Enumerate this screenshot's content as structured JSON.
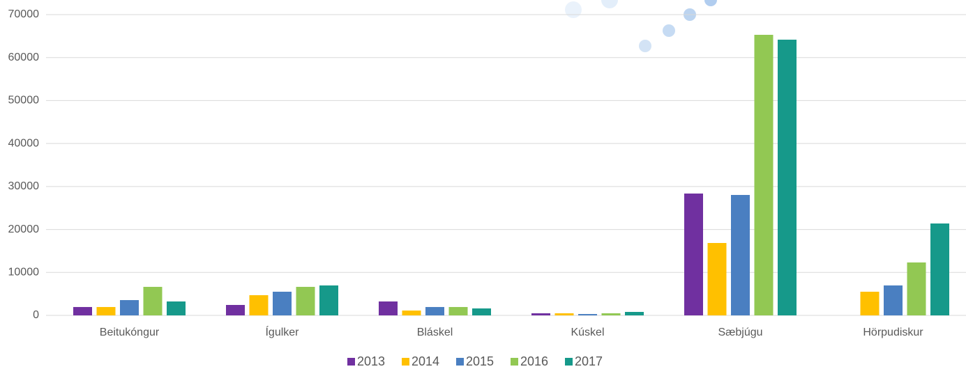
{
  "chart_data": {
    "type": "bar",
    "categories": [
      "Beitukóngur",
      "Ígulker",
      "Bláskel",
      "Kúskel",
      "Sæbjúgu",
      "Hörpudiskur"
    ],
    "series": [
      {
        "name": "2013",
        "color": "#7030a0",
        "values": [
          1950,
          2430,
          3240,
          490,
          28360,
          null
        ]
      },
      {
        "name": "2014",
        "color": "#ffc000",
        "values": [
          1950,
          4700,
          1130,
          490,
          16850,
          5510
        ]
      },
      {
        "name": "2015",
        "color": "#4a7fc1",
        "values": [
          3560,
          5510,
          1950,
          320,
          28030,
          6970
        ]
      },
      {
        "name": "2016",
        "color": "#92c853",
        "values": [
          6640,
          6640,
          1950,
          490,
          65300,
          12320
        ]
      },
      {
        "name": "2017",
        "color": "#16998a",
        "values": [
          3240,
          6970,
          1620,
          810,
          64170,
          21390
        ]
      }
    ],
    "ylim": [
      0,
      70000
    ],
    "yticks": [
      0,
      10000,
      20000,
      30000,
      40000,
      50000,
      60000,
      70000
    ],
    "grid": true,
    "legend": "bottom"
  }
}
